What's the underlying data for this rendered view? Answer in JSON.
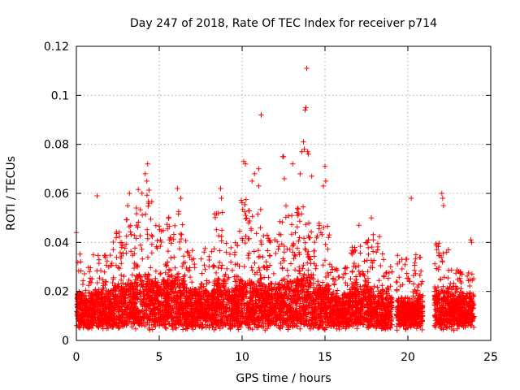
{
  "chart_data": {
    "type": "scatter",
    "title": "Day 247 of 2018, Rate Of TEC Index for receiver p714",
    "xlabel": "GPS time / hours",
    "ylabel": "ROTI / TECUs",
    "xlim": [
      0,
      25
    ],
    "ylim": [
      0,
      0.12
    ],
    "xticks": [
      0,
      5,
      10,
      15,
      20,
      25
    ],
    "xtick_labels": [
      "0",
      "5",
      "10",
      "15",
      "20",
      "25"
    ],
    "yticks": [
      0,
      0.02,
      0.04,
      0.06,
      0.08,
      0.1,
      0.12
    ],
    "ytick_labels": [
      "0",
      "0.02",
      "0.04",
      "0.06",
      "0.08",
      "0.1",
      "0.12"
    ],
    "grid": true,
    "marker": "+",
    "color": "#ff0000",
    "series": [
      {
        "name": "ROTI",
        "outliers": [
          [
            0.0,
            0.044
          ],
          [
            1.25,
            0.059
          ],
          [
            3.1,
            0.055
          ],
          [
            3.2,
            0.06
          ],
          [
            4.15,
            0.068
          ],
          [
            4.3,
            0.072
          ],
          [
            4.25,
            0.065
          ],
          [
            6.1,
            0.062
          ],
          [
            6.3,
            0.058
          ],
          [
            8.7,
            0.062
          ],
          [
            8.75,
            0.058
          ],
          [
            10.1,
            0.073
          ],
          [
            10.2,
            0.072
          ],
          [
            10.6,
            0.065
          ],
          [
            10.75,
            0.068
          ],
          [
            11.0,
            0.07
          ],
          [
            11.15,
            0.092
          ],
          [
            11.0,
            0.063
          ],
          [
            12.45,
            0.075
          ],
          [
            12.5,
            0.075
          ],
          [
            12.55,
            0.066
          ],
          [
            13.05,
            0.072
          ],
          [
            13.5,
            0.068
          ],
          [
            13.6,
            0.077
          ],
          [
            13.8,
            0.094
          ],
          [
            13.9,
            0.111
          ],
          [
            13.85,
            0.095
          ],
          [
            13.7,
            0.081
          ],
          [
            13.75,
            0.078
          ],
          [
            13.95,
            0.077
          ],
          [
            14.0,
            0.076
          ],
          [
            14.2,
            0.067
          ],
          [
            15.0,
            0.071
          ],
          [
            15.05,
            0.065
          ],
          [
            14.9,
            0.063
          ],
          [
            17.05,
            0.047
          ],
          [
            17.8,
            0.05
          ],
          [
            20.2,
            0.058
          ],
          [
            22.05,
            0.06
          ],
          [
            22.1,
            0.058
          ],
          [
            22.15,
            0.055
          ],
          [
            23.8,
            0.041
          ],
          [
            23.85,
            0.04
          ]
        ],
        "envelope": [
          {
            "from": 0.0,
            "to": 0.3,
            "base": 0.018,
            "peak": 0.036
          },
          {
            "from": 0.3,
            "to": 1.0,
            "base": 0.016,
            "peak": 0.03
          },
          {
            "from": 1.0,
            "to": 2.2,
            "base": 0.018,
            "peak": 0.035
          },
          {
            "from": 2.2,
            "to": 3.0,
            "base": 0.02,
            "peak": 0.045
          },
          {
            "from": 3.0,
            "to": 3.6,
            "base": 0.022,
            "peak": 0.05
          },
          {
            "from": 3.6,
            "to": 4.6,
            "base": 0.024,
            "peak": 0.062
          },
          {
            "from": 4.6,
            "to": 5.5,
            "base": 0.022,
            "peak": 0.05
          },
          {
            "from": 5.5,
            "to": 6.6,
            "base": 0.024,
            "peak": 0.055
          },
          {
            "from": 6.6,
            "to": 8.3,
            "base": 0.018,
            "peak": 0.038
          },
          {
            "from": 8.3,
            "to": 9.0,
            "base": 0.022,
            "peak": 0.055
          },
          {
            "from": 9.0,
            "to": 9.8,
            "base": 0.018,
            "peak": 0.04
          },
          {
            "from": 9.8,
            "to": 11.2,
            "base": 0.022,
            "peak": 0.058
          },
          {
            "from": 11.2,
            "to": 12.2,
            "base": 0.02,
            "peak": 0.045
          },
          {
            "from": 12.2,
            "to": 13.3,
            "base": 0.022,
            "peak": 0.055
          },
          {
            "from": 13.3,
            "to": 14.3,
            "base": 0.024,
            "peak": 0.058
          },
          {
            "from": 14.3,
            "to": 15.3,
            "base": 0.02,
            "peak": 0.048
          },
          {
            "from": 15.3,
            "to": 16.5,
            "base": 0.016,
            "peak": 0.03
          },
          {
            "from": 16.5,
            "to": 17.5,
            "base": 0.02,
            "peak": 0.04
          },
          {
            "from": 17.5,
            "to": 18.5,
            "base": 0.018,
            "peak": 0.045
          },
          {
            "from": 18.5,
            "to": 19.05,
            "base": 0.016,
            "peak": 0.035
          },
          {
            "from": 19.3,
            "to": 20.9,
            "base": 0.014,
            "peak": 0.035
          },
          {
            "from": 21.6,
            "to": 22.5,
            "base": 0.018,
            "peak": 0.04
          },
          {
            "from": 22.5,
            "to": 24.0,
            "base": 0.016,
            "peak": 0.03
          }
        ]
      }
    ]
  }
}
